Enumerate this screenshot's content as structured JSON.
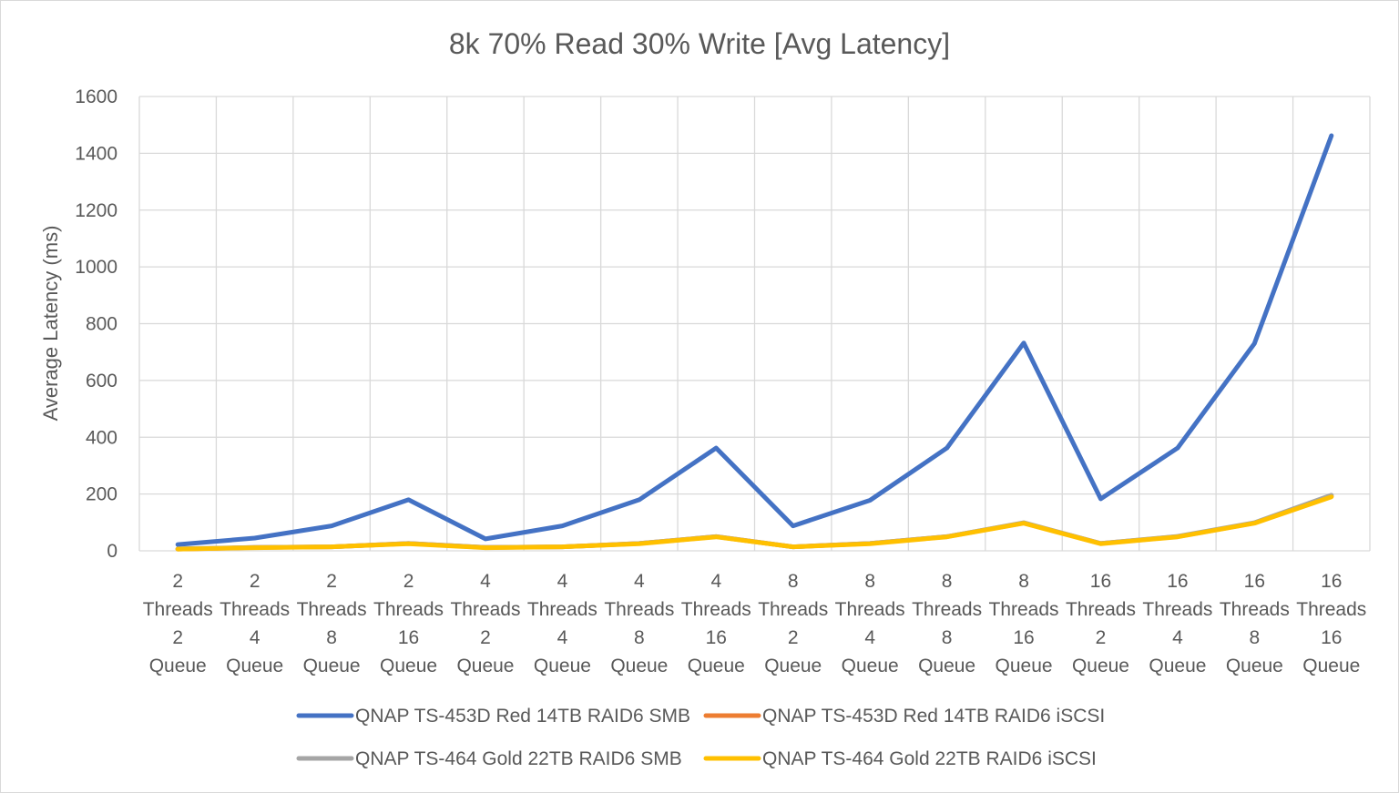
{
  "chart_data": {
    "type": "line",
    "title": "8k 70% Read 30% Write [Avg Latency]",
    "xlabel": "",
    "ylabel": "Average Latency (ms)",
    "ylim": [
      0,
      1600
    ],
    "yticks": [
      0,
      200,
      400,
      600,
      800,
      1000,
      1200,
      1400,
      1600
    ],
    "grid": true,
    "legend_position": "bottom",
    "categories": [
      [
        "2",
        "Threads",
        "2",
        "Queue"
      ],
      [
        "2",
        "Threads",
        "4",
        "Queue"
      ],
      [
        "2",
        "Threads",
        "8",
        "Queue"
      ],
      [
        "2",
        "Threads",
        "16",
        "Queue"
      ],
      [
        "4",
        "Threads",
        "2",
        "Queue"
      ],
      [
        "4",
        "Threads",
        "4",
        "Queue"
      ],
      [
        "4",
        "Threads",
        "8",
        "Queue"
      ],
      [
        "4",
        "Threads",
        "16",
        "Queue"
      ],
      [
        "8",
        "Threads",
        "2",
        "Queue"
      ],
      [
        "8",
        "Threads",
        "4",
        "Queue"
      ],
      [
        "8",
        "Threads",
        "8",
        "Queue"
      ],
      [
        "8",
        "Threads",
        "16",
        "Queue"
      ],
      [
        "16",
        "Threads",
        "2",
        "Queue"
      ],
      [
        "16",
        "Threads",
        "4",
        "Queue"
      ],
      [
        "16",
        "Threads",
        "8",
        "Queue"
      ],
      [
        "16",
        "Threads",
        "16",
        "Queue"
      ]
    ],
    "series": [
      {
        "name": "QNAP TS-453D Red 14TB RAID6 SMB",
        "color": "#4472c4",
        "values": [
          22,
          45,
          88,
          180,
          42,
          88,
          180,
          362,
          88,
          178,
          362,
          732,
          183,
          362,
          730,
          1462
        ]
      },
      {
        "name": "QNAP TS-453D Red 14TB RAID6 iSCSI",
        "color": "#ed7d31",
        "values": [
          6,
          12,
          14,
          26,
          12,
          14,
          26,
          50,
          14,
          26,
          50,
          98,
          26,
          50,
          98,
          192
        ]
      },
      {
        "name": "QNAP TS-464 Gold 22TB RAID6 SMB",
        "color": "#a5a5a5",
        "values": [
          7,
          12,
          14,
          26,
          12,
          14,
          26,
          50,
          14,
          26,
          50,
          99,
          26,
          51,
          99,
          196
        ]
      },
      {
        "name": "QNAP TS-464 Gold 22TB RAID6 iSCSI",
        "color": "#ffc000",
        "values": [
          6,
          11,
          14,
          25,
          11,
          14,
          25,
          49,
          14,
          25,
          49,
          97,
          25,
          49,
          97,
          190
        ]
      }
    ]
  }
}
